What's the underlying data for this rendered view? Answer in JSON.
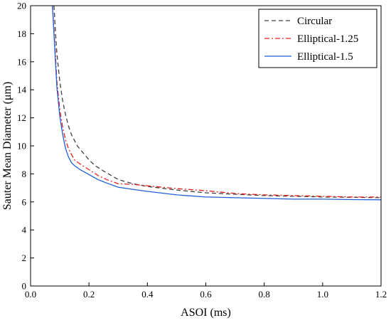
{
  "chart_data": {
    "type": "line",
    "xlabel": "ASOI (ms)",
    "ylabel": "Sauter Mean Diameter (μm)",
    "xlim": [
      0.0,
      1.2
    ],
    "ylim": [
      0,
      20
    ],
    "xticks": [
      0.0,
      0.2,
      0.4,
      0.6,
      0.8,
      1.0,
      1.2
    ],
    "xtick_labels": [
      "0.0",
      "0.2",
      "0.4",
      "0.6",
      "0.8",
      "1.0",
      "1.2"
    ],
    "yticks": [
      0,
      2,
      4,
      6,
      8,
      10,
      12,
      14,
      16,
      18,
      20
    ],
    "ytick_labels": [
      "0",
      "2",
      "4",
      "6",
      "8",
      "10",
      "12",
      "14",
      "16",
      "18",
      "20"
    ],
    "grid": false,
    "legend_position": "top-right",
    "series": [
      {
        "name": "Circular",
        "color": "#404040",
        "dash": "dashed",
        "points": [
          [
            0.08,
            20
          ],
          [
            0.085,
            18.2
          ],
          [
            0.09,
            16.6
          ],
          [
            0.1,
            14.6
          ],
          [
            0.11,
            13.2
          ],
          [
            0.12,
            12.2
          ],
          [
            0.13,
            11.4
          ],
          [
            0.14,
            10.8
          ],
          [
            0.15,
            10.4
          ],
          [
            0.16,
            10.0
          ],
          [
            0.18,
            9.5
          ],
          [
            0.2,
            9.0
          ],
          [
            0.22,
            8.6
          ],
          [
            0.25,
            8.2
          ],
          [
            0.3,
            7.6
          ],
          [
            0.35,
            7.3
          ],
          [
            0.4,
            7.1
          ],
          [
            0.5,
            6.85
          ],
          [
            0.6,
            6.65
          ],
          [
            0.7,
            6.55
          ],
          [
            0.8,
            6.45
          ],
          [
            0.9,
            6.4
          ],
          [
            1.0,
            6.35
          ],
          [
            1.1,
            6.33
          ],
          [
            1.2,
            6.3
          ]
        ]
      },
      {
        "name": "Elliptical-1.25",
        "color": "#e8201a",
        "dash": "dashdot",
        "points": [
          [
            0.075,
            20
          ],
          [
            0.08,
            18.3
          ],
          [
            0.085,
            16.6
          ],
          [
            0.09,
            14.6
          ],
          [
            0.1,
            12.6
          ],
          [
            0.11,
            11.3
          ],
          [
            0.12,
            10.4
          ],
          [
            0.13,
            9.8
          ],
          [
            0.14,
            9.4
          ],
          [
            0.15,
            9.0
          ],
          [
            0.17,
            8.7
          ],
          [
            0.2,
            8.3
          ],
          [
            0.23,
            7.9
          ],
          [
            0.26,
            7.6
          ],
          [
            0.3,
            7.3
          ],
          [
            0.35,
            7.25
          ],
          [
            0.4,
            7.15
          ],
          [
            0.5,
            6.95
          ],
          [
            0.6,
            6.8
          ],
          [
            0.7,
            6.6
          ],
          [
            0.8,
            6.5
          ],
          [
            0.9,
            6.45
          ],
          [
            1.0,
            6.4
          ],
          [
            1.1,
            6.35
          ],
          [
            1.2,
            6.35
          ]
        ]
      },
      {
        "name": "Elliptical-1.5",
        "color": "#1f5fd6",
        "dash": "solid",
        "points": [
          [
            0.075,
            20
          ],
          [
            0.08,
            18.0
          ],
          [
            0.085,
            16.1
          ],
          [
            0.09,
            14.2
          ],
          [
            0.1,
            12.1
          ],
          [
            0.11,
            10.8
          ],
          [
            0.12,
            9.8
          ],
          [
            0.13,
            9.2
          ],
          [
            0.14,
            8.8
          ],
          [
            0.15,
            8.6
          ],
          [
            0.17,
            8.3
          ],
          [
            0.2,
            7.95
          ],
          [
            0.23,
            7.6
          ],
          [
            0.26,
            7.35
          ],
          [
            0.3,
            7.05
          ],
          [
            0.35,
            6.9
          ],
          [
            0.4,
            6.75
          ],
          [
            0.5,
            6.5
          ],
          [
            0.6,
            6.35
          ],
          [
            0.7,
            6.3
          ],
          [
            0.8,
            6.25
          ],
          [
            0.9,
            6.2
          ],
          [
            1.0,
            6.2
          ],
          [
            1.1,
            6.17
          ],
          [
            1.2,
            6.15
          ]
        ]
      }
    ]
  }
}
